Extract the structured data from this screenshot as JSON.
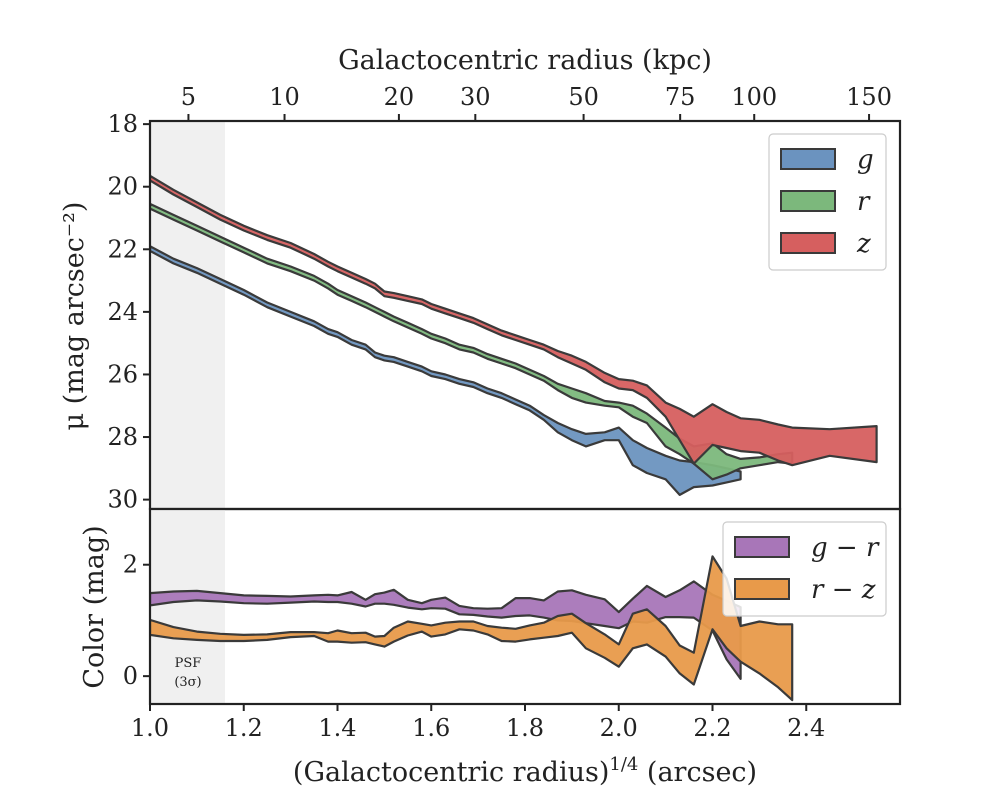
{
  "chart_data": [
    {
      "type": "area",
      "panel": "surface-brightness",
      "xlabel": "(Galactocentric radius)^1/4 (arcsec)",
      "x2label": "Galactocentric radius (kpc)",
      "x2_ticks": [
        {
          "label": "5",
          "x": 1.082
        },
        {
          "label": "10",
          "x": 1.287
        },
        {
          "label": "20",
          "x": 1.531
        },
        {
          "label": "30",
          "x": 1.694
        },
        {
          "label": "50",
          "x": 1.925
        },
        {
          "label": "75",
          "x": 2.131
        },
        {
          "label": "100",
          "x": 2.289
        },
        {
          "label": "150",
          "x": 2.534
        }
      ],
      "ylabel": "μ (mag arcsec⁻²)",
      "xlim": [
        1.0,
        2.6
      ],
      "ylim": [
        30.3,
        17.9
      ],
      "y_inverted": true,
      "yticks": [
        18,
        20,
        22,
        24,
        26,
        28,
        30
      ],
      "legend_position": "top-right",
      "shaded_region": {
        "x": [
          1.0,
          1.16
        ],
        "color": "#f0f0f0"
      },
      "series": [
        {
          "name": "g",
          "color": "#6b93bf",
          "x": [
            1.0,
            1.05,
            1.1,
            1.15,
            1.2,
            1.25,
            1.3,
            1.35,
            1.38,
            1.4,
            1.43,
            1.46,
            1.48,
            1.5,
            1.52,
            1.55,
            1.58,
            1.6,
            1.63,
            1.66,
            1.69,
            1.72,
            1.75,
            1.78,
            1.81,
            1.84,
            1.87,
            1.9,
            1.93,
            1.97,
            2.0,
            2.03,
            2.06,
            2.1,
            2.13,
            2.16,
            2.2,
            2.23,
            2.26
          ],
          "lower": [
            21.9,
            22.3,
            22.6,
            22.95,
            23.3,
            23.7,
            24.0,
            24.3,
            24.55,
            24.65,
            24.9,
            25.05,
            25.3,
            25.4,
            25.45,
            25.6,
            25.75,
            25.9,
            26.0,
            26.15,
            26.25,
            26.45,
            26.6,
            26.8,
            27.0,
            27.3,
            27.55,
            27.75,
            27.9,
            27.85,
            27.7,
            28.1,
            28.35,
            28.6,
            28.75,
            28.8,
            28.9,
            29.0,
            29.1
          ],
          "upper": [
            22.05,
            22.45,
            22.75,
            23.1,
            23.45,
            23.85,
            24.15,
            24.45,
            24.7,
            24.8,
            25.05,
            25.2,
            25.45,
            25.55,
            25.6,
            25.75,
            25.9,
            26.05,
            26.15,
            26.3,
            26.4,
            26.6,
            26.75,
            26.95,
            27.15,
            27.45,
            27.85,
            28.1,
            28.3,
            28.1,
            28.1,
            28.9,
            29.15,
            29.35,
            29.85,
            29.6,
            29.55,
            29.45,
            29.35
          ]
        },
        {
          "name": "r",
          "color": "#7cb87c",
          "x": [
            1.0,
            1.05,
            1.1,
            1.15,
            1.2,
            1.25,
            1.3,
            1.35,
            1.38,
            1.4,
            1.43,
            1.46,
            1.48,
            1.5,
            1.52,
            1.55,
            1.58,
            1.6,
            1.63,
            1.66,
            1.69,
            1.72,
            1.75,
            1.78,
            1.81,
            1.84,
            1.87,
            1.9,
            1.93,
            1.97,
            2.0,
            2.03,
            2.06,
            2.1,
            2.13,
            2.16,
            2.2,
            2.23,
            2.26,
            2.3,
            2.34,
            2.37
          ],
          "lower": [
            20.55,
            20.9,
            21.25,
            21.6,
            21.95,
            22.3,
            22.55,
            22.85,
            23.1,
            23.3,
            23.5,
            23.7,
            23.85,
            24.0,
            24.15,
            24.35,
            24.55,
            24.7,
            24.85,
            25.05,
            25.15,
            25.35,
            25.5,
            25.65,
            25.85,
            26.05,
            26.3,
            26.45,
            26.6,
            26.85,
            26.9,
            27.0,
            27.25,
            27.7,
            28.05,
            28.3,
            28.2,
            28.55,
            28.7,
            28.65,
            28.55,
            28.5
          ],
          "upper": [
            20.7,
            21.05,
            21.4,
            21.75,
            22.1,
            22.45,
            22.7,
            23.0,
            23.25,
            23.45,
            23.65,
            23.85,
            24.0,
            24.15,
            24.3,
            24.5,
            24.7,
            24.85,
            25.0,
            25.2,
            25.3,
            25.5,
            25.65,
            25.8,
            26.0,
            26.2,
            26.5,
            26.75,
            26.9,
            27.0,
            27.05,
            27.35,
            27.55,
            28.3,
            28.55,
            28.85,
            29.35,
            29.2,
            29.0,
            28.9,
            28.8,
            28.85
          ]
        },
        {
          "name": "z",
          "color": "#d65f5f",
          "x": [
            1.0,
            1.05,
            1.1,
            1.15,
            1.2,
            1.25,
            1.3,
            1.35,
            1.38,
            1.4,
            1.43,
            1.46,
            1.48,
            1.5,
            1.52,
            1.55,
            1.58,
            1.6,
            1.63,
            1.66,
            1.69,
            1.72,
            1.75,
            1.78,
            1.81,
            1.84,
            1.87,
            1.9,
            1.93,
            1.97,
            2.0,
            2.03,
            2.06,
            2.1,
            2.13,
            2.16,
            2.2,
            2.23,
            2.26,
            2.3,
            2.34,
            2.37,
            2.45,
            2.55
          ],
          "lower": [
            19.65,
            20.1,
            20.5,
            20.9,
            21.25,
            21.55,
            21.8,
            22.15,
            22.4,
            22.55,
            22.75,
            22.95,
            23.1,
            23.35,
            23.4,
            23.5,
            23.6,
            23.75,
            23.9,
            24.05,
            24.2,
            24.4,
            24.6,
            24.75,
            24.9,
            25.05,
            25.25,
            25.4,
            25.6,
            25.95,
            26.15,
            26.2,
            26.35,
            26.9,
            27.1,
            27.35,
            26.95,
            27.2,
            27.4,
            27.45,
            27.6,
            27.7,
            27.75,
            27.65
          ],
          "upper": [
            19.8,
            20.25,
            20.65,
            21.05,
            21.4,
            21.7,
            21.95,
            22.3,
            22.55,
            22.7,
            22.9,
            23.1,
            23.25,
            23.5,
            23.55,
            23.65,
            23.75,
            23.9,
            24.05,
            24.2,
            24.35,
            24.55,
            24.75,
            24.9,
            25.05,
            25.2,
            25.45,
            25.65,
            25.85,
            26.25,
            26.45,
            26.5,
            26.75,
            27.35,
            28.1,
            28.85,
            28.25,
            28.35,
            28.45,
            28.5,
            28.75,
            28.9,
            28.6,
            28.8
          ]
        }
      ]
    },
    {
      "type": "area",
      "panel": "color",
      "xlabel": "(Galactocentric radius)^1/4 (arcsec)",
      "ylabel": "Color (mag)",
      "xlim": [
        1.0,
        2.6
      ],
      "ylim": [
        -0.5,
        3.0
      ],
      "yticks": [
        0,
        2
      ],
      "xticks": [
        1.0,
        1.2,
        1.4,
        1.6,
        1.8,
        2.0,
        2.2,
        2.4
      ],
      "legend_position": "top-right",
      "shaded_region": {
        "x": [
          1.0,
          1.16
        ],
        "color": "#f0f0f0"
      },
      "annotation": {
        "line1": "PSF",
        "line2": "(3σ)"
      },
      "series": [
        {
          "name": "g − r",
          "color": "#a876b8",
          "x": [
            1.0,
            1.05,
            1.1,
            1.15,
            1.2,
            1.25,
            1.3,
            1.35,
            1.38,
            1.4,
            1.43,
            1.46,
            1.48,
            1.5,
            1.52,
            1.55,
            1.58,
            1.6,
            1.63,
            1.66,
            1.69,
            1.72,
            1.75,
            1.78,
            1.81,
            1.84,
            1.87,
            1.9,
            1.93,
            1.97,
            2.0,
            2.03,
            2.06,
            2.1,
            2.13,
            2.16,
            2.2,
            2.23,
            2.26
          ],
          "lower": [
            1.27,
            1.33,
            1.36,
            1.34,
            1.31,
            1.3,
            1.32,
            1.34,
            1.33,
            1.33,
            1.3,
            1.25,
            1.3,
            1.3,
            1.28,
            1.23,
            1.2,
            1.22,
            1.21,
            1.11,
            1.1,
            1.07,
            1.05,
            1.08,
            1.09,
            1.05,
            1.0,
            0.99,
            0.95,
            0.9,
            0.86,
            0.98,
            0.96,
            1.06,
            1.06,
            1.05,
            0.82,
            0.3,
            -0.05
          ],
          "upper": [
            1.49,
            1.52,
            1.53,
            1.49,
            1.45,
            1.44,
            1.43,
            1.45,
            1.46,
            1.45,
            1.51,
            1.37,
            1.47,
            1.5,
            1.55,
            1.37,
            1.31,
            1.37,
            1.41,
            1.26,
            1.22,
            1.21,
            1.22,
            1.4,
            1.4,
            1.36,
            1.52,
            1.54,
            1.46,
            1.38,
            1.15,
            1.39,
            1.62,
            1.42,
            1.54,
            1.7,
            1.46,
            1.35,
            1.24
          ]
        },
        {
          "name": "r − z",
          "color": "#e89a4a",
          "x": [
            1.0,
            1.05,
            1.1,
            1.15,
            1.2,
            1.25,
            1.3,
            1.35,
            1.38,
            1.4,
            1.43,
            1.46,
            1.48,
            1.5,
            1.52,
            1.55,
            1.58,
            1.6,
            1.63,
            1.66,
            1.69,
            1.72,
            1.75,
            1.78,
            1.81,
            1.84,
            1.87,
            1.9,
            1.93,
            1.97,
            2.0,
            2.03,
            2.06,
            2.1,
            2.13,
            2.16,
            2.2,
            2.23,
            2.26,
            2.3,
            2.34,
            2.37
          ],
          "lower": [
            0.74,
            0.68,
            0.65,
            0.63,
            0.63,
            0.65,
            0.7,
            0.72,
            0.62,
            0.62,
            0.6,
            0.61,
            0.57,
            0.53,
            0.62,
            0.73,
            0.8,
            0.71,
            0.75,
            0.84,
            0.82,
            0.75,
            0.63,
            0.62,
            0.66,
            0.69,
            0.72,
            0.78,
            0.5,
            0.33,
            0.17,
            0.5,
            0.57,
            0.35,
            0.05,
            -0.15,
            0.84,
            0.5,
            0.26,
            0.05,
            -0.2,
            -0.43
          ],
          "upper": [
            1.01,
            0.88,
            0.8,
            0.76,
            0.74,
            0.75,
            0.79,
            0.79,
            0.77,
            0.82,
            0.77,
            0.78,
            0.71,
            0.72,
            0.87,
            0.98,
            0.94,
            0.91,
            0.96,
            0.98,
            0.98,
            0.9,
            0.87,
            0.85,
            0.91,
            0.96,
            1.08,
            1.12,
            0.95,
            0.75,
            0.57,
            1.12,
            1.2,
            0.9,
            0.55,
            0.42,
            2.15,
            1.75,
            0.9,
            0.98,
            0.93,
            0.93
          ]
        }
      ]
    }
  ]
}
